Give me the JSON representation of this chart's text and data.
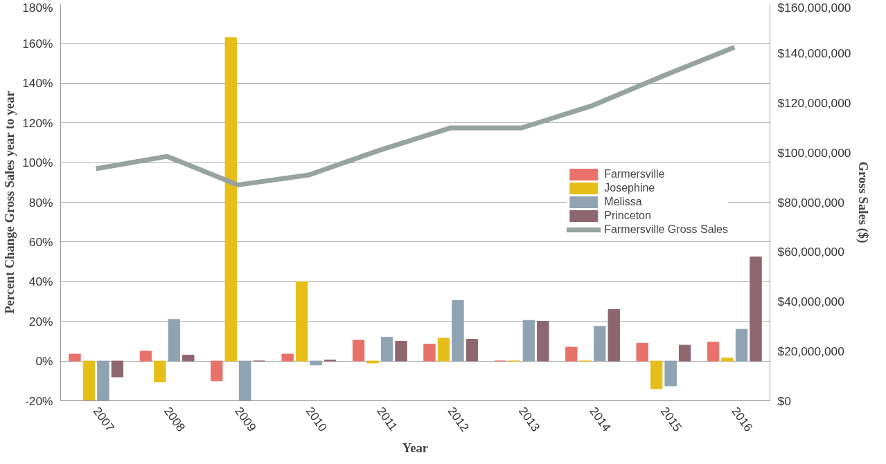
{
  "chart_data": {
    "type": "bar",
    "xlabel": "Year",
    "ylabel": "Percent Change Gross Sales year to year",
    "y2label": "Gross Sales ($)",
    "categories": [
      "2007",
      "2008",
      "2009",
      "2010",
      "2011",
      "2012",
      "2013",
      "2014",
      "2015",
      "2016"
    ],
    "series": [
      {
        "name": "Farmersville",
        "color": "#e8726a",
        "values": [
          3.5,
          5,
          -10,
          3.5,
          10.5,
          8.5,
          0,
          7,
          9,
          9.5
        ]
      },
      {
        "name": "Josephine",
        "color": "#e6be1a",
        "values": [
          -20,
          -10.5,
          163,
          40,
          -1,
          11.5,
          0,
          0,
          -14,
          1.5
        ]
      },
      {
        "name": "Melissa",
        "color": "#8fa3b3",
        "values": [
          -20,
          21,
          -20,
          -2,
          12,
          30.5,
          20.5,
          17.5,
          -12.5,
          16
        ]
      },
      {
        "name": "Princeton",
        "color": "#8e6670",
        "values": [
          -8,
          3,
          0,
          0.5,
          10,
          11,
          20,
          26,
          8,
          52.5
        ]
      },
      {
        "name": "Farmersville Gross Sales",
        "type": "line",
        "axis": "y2",
        "color": "#97a39f",
        "values": [
          93500000,
          98500000,
          87000000,
          91000000,
          101000000,
          110000000,
          110000000,
          119000000,
          131000000,
          142500000
        ]
      }
    ],
    "ylim": [
      -20,
      180
    ],
    "yticks": [
      {
        "value": -20,
        "label": "-20%"
      },
      {
        "value": 0,
        "label": "0%"
      },
      {
        "value": 20,
        "label": "20%"
      },
      {
        "value": 40,
        "label": "40%"
      },
      {
        "value": 60,
        "label": "60%"
      },
      {
        "value": 80,
        "label": "80%"
      },
      {
        "value": 100,
        "label": "100%"
      },
      {
        "value": 120,
        "label": "120%"
      },
      {
        "value": 140,
        "label": "140%"
      },
      {
        "value": 160,
        "label": "160%"
      },
      {
        "value": 180,
        "label": "180%"
      }
    ],
    "y2lim": [
      0,
      160000000
    ],
    "y2ticks": [
      {
        "value": 0,
        "label": "$0"
      },
      {
        "value": 20000000,
        "label": "$20,000,000"
      },
      {
        "value": 40000000,
        "label": "$40,000,000"
      },
      {
        "value": 60000000,
        "label": "$60,000,000"
      },
      {
        "value": 80000000,
        "label": "$80,000,000"
      },
      {
        "value": 100000000,
        "label": "$100,000,000"
      },
      {
        "value": 120000000,
        "label": "$120,000,000"
      },
      {
        "value": 140000000,
        "label": "$140,000,000"
      },
      {
        "value": 160000000,
        "label": "$160,000,000"
      }
    ],
    "grid": "y",
    "legend": "right"
  }
}
